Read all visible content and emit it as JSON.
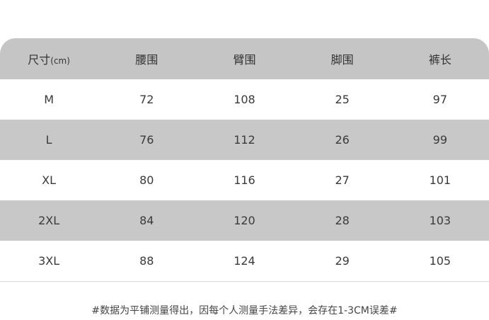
{
  "table": {
    "header": {
      "size_label": "尺寸",
      "size_unit": "(cm)",
      "columns": [
        "腰围",
        "臂围",
        "脚围",
        "裤长"
      ]
    },
    "rows": [
      {
        "size": "M",
        "values": [
          "72",
          "108",
          "25",
          "97"
        ]
      },
      {
        "size": "L",
        "values": [
          "76",
          "112",
          "26",
          "99"
        ]
      },
      {
        "size": "XL",
        "values": [
          "80",
          "116",
          "27",
          "101"
        ]
      },
      {
        "size": "2XL",
        "values": [
          "84",
          "120",
          "28",
          "103"
        ]
      },
      {
        "size": "3XL",
        "values": [
          "88",
          "124",
          "29",
          "105"
        ]
      }
    ],
    "colors": {
      "header": "#c5c5c5",
      "stripe": "#c8c8c8",
      "plain": "#ffffff"
    }
  },
  "note": "#数据为平铺测量得出，因每个人测量手法差异，会存在1-3CM误差#"
}
